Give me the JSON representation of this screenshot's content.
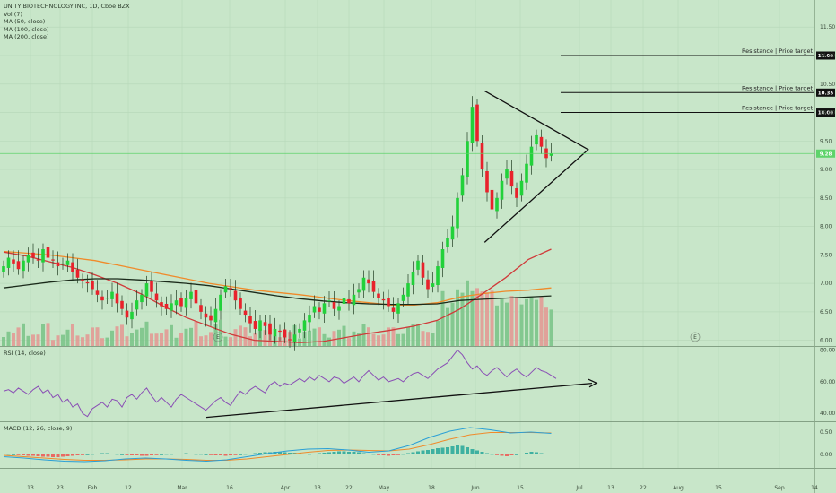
{
  "header": {
    "symbol_title": "UNITY BIOTECHNOLOGY INC, 1D, Cboe BZX",
    "indicators": [
      "Vol (7)",
      "MA (50, close)",
      "MA (100, close)",
      "MA (200, close)"
    ]
  },
  "rsi_panel": {
    "label": "RSI (14, close)"
  },
  "macd_panel": {
    "label": "MACD (12, 26, close, 9)"
  },
  "colors": {
    "background": "#c8e6c9",
    "up": "#22d13a",
    "down": "#e8222b",
    "ma50": "#d03a3a",
    "ma100": "#f08a2a",
    "ma200": "#1a2a1a",
    "rsi": "#8a4fb5",
    "macd": "#2a9fd6",
    "signal": "#f08a2a",
    "current_price_line": "#5ed36b"
  },
  "chart_data": [
    {
      "type": "candlestick",
      "title": "UNITY BIOTECHNOLOGY INC, 1D, Cboe BZX",
      "ylim": [
        5.9,
        11.85
      ],
      "y_ticks": [
        "11.50",
        "11.00",
        "10.50",
        "10.00",
        "9.50",
        "9.00",
        "8.50",
        "8.00",
        "7.50",
        "7.00",
        "6.50",
        "6.00"
      ],
      "x_ticks": [
        "13",
        "23",
        "Feb",
        "12",
        "Mar",
        "16",
        "Apr",
        "13",
        "22",
        "May",
        "18",
        "Jun",
        "15",
        "Jul",
        "13",
        "22",
        "Aug",
        "15",
        "Sep",
        "14"
      ],
      "current_price": "9.28",
      "candles_close": [
        7.3,
        7.45,
        7.35,
        7.25,
        7.4,
        7.5,
        7.45,
        7.4,
        7.6,
        7.45,
        7.4,
        7.3,
        7.35,
        7.4,
        7.2,
        7.1,
        7.05,
        7.0,
        6.9,
        6.8,
        6.7,
        6.75,
        6.85,
        6.65,
        6.55,
        6.4,
        6.5,
        6.7,
        6.8,
        7.0,
        6.85,
        6.7,
        6.6,
        6.55,
        6.65,
        6.7,
        6.6,
        6.75,
        6.85,
        6.65,
        6.5,
        6.4,
        6.35,
        6.55,
        6.8,
        6.95,
        6.9,
        6.7,
        6.55,
        6.45,
        6.3,
        6.2,
        6.35,
        6.25,
        6.1,
        6.2,
        6.15,
        6.05,
        6.0,
        6.1,
        6.2,
        6.35,
        6.45,
        6.6,
        6.5,
        6.65,
        6.7,
        6.55,
        6.6,
        6.75,
        6.65,
        6.8,
        6.9,
        7.1,
        7.0,
        6.85,
        6.75,
        6.7,
        6.6,
        6.5,
        6.65,
        6.8,
        7.0,
        7.2,
        7.4,
        7.1,
        6.9,
        7.0,
        7.3,
        7.6,
        7.8,
        8.0,
        8.5,
        8.9,
        9.5,
        10.1,
        9.5,
        9.0,
        8.6,
        8.3,
        8.5,
        8.8,
        9.0,
        8.7,
        8.5,
        8.8,
        9.1,
        9.4,
        9.6,
        9.4,
        9.2,
        9.28
      ],
      "ma50": [
        7.55,
        7.48,
        7.38,
        7.28,
        7.15,
        7.0,
        6.82,
        6.6,
        6.4,
        6.25,
        6.1,
        6.0,
        5.98,
        5.96,
        5.98,
        6.05,
        6.12,
        6.18,
        6.25,
        6.35,
        6.55,
        6.82,
        7.1,
        7.42,
        7.6
      ],
      "ma100": [
        7.56,
        7.53,
        7.5,
        7.45,
        7.4,
        7.32,
        7.24,
        7.16,
        7.08,
        7.0,
        6.94,
        6.88,
        6.84,
        6.8,
        6.75,
        6.7,
        6.66,
        6.62,
        6.62,
        6.66,
        6.76,
        6.82,
        6.86,
        6.88,
        6.92
      ],
      "ma200": [
        6.92,
        6.97,
        7.02,
        7.06,
        7.08,
        7.08,
        7.06,
        7.03,
        7.0,
        6.96,
        6.9,
        6.84,
        6.78,
        6.73,
        6.69,
        6.66,
        6.64,
        6.63,
        6.63,
        6.64,
        6.7,
        6.72,
        6.74,
        6.76,
        6.78
      ],
      "resistance_levels": [
        {
          "label": "Resistance | Price target",
          "value": "11.00"
        },
        {
          "label": "Resistance | Price target",
          "value": "10.35"
        },
        {
          "label": "Resistance | Price target",
          "value": "10.00"
        }
      ],
      "annotations": [
        "E",
        "E"
      ]
    },
    {
      "type": "line",
      "title": "RSI (14, close)",
      "ylim": [
        35,
        82
      ],
      "y_ticks": [
        "80.00",
        "60.00",
        "40.00"
      ],
      "values": [
        54,
        55,
        53,
        56,
        54,
        52,
        55,
        57,
        53,
        55,
        50,
        52,
        47,
        49,
        44,
        46,
        40,
        38,
        43,
        45,
        47,
        44,
        49,
        48,
        44,
        50,
        52,
        49,
        53,
        56,
        51,
        47,
        50,
        47,
        44,
        49,
        52,
        50,
        48,
        46,
        44,
        42,
        45,
        48,
        50,
        47,
        45,
        50,
        54,
        52,
        55,
        57,
        55,
        53,
        58,
        60,
        57,
        59,
        58,
        60,
        62,
        60,
        63,
        61,
        64,
        62,
        60,
        63,
        62,
        59,
        61,
        63,
        60,
        64,
        67,
        64,
        61,
        63,
        60,
        61,
        62,
        60,
        63,
        65,
        66,
        64,
        62,
        65,
        68,
        70,
        72,
        76,
        80,
        77,
        72,
        68,
        70,
        66,
        64,
        67,
        69,
        66,
        63,
        66,
        68,
        65,
        63,
        66,
        69,
        67,
        66,
        64,
        62
      ]
    },
    {
      "type": "bar",
      "title": "MACD (12, 26, close, 9)",
      "ylim": [
        -0.3,
        0.72
      ],
      "y_ticks": [
        "0.50",
        "0.00"
      ],
      "histogram": [
        0.02,
        0.01,
        0.0,
        -0.01,
        -0.02,
        -0.03,
        -0.03,
        -0.04,
        -0.05,
        -0.05,
        -0.06,
        -0.06,
        -0.05,
        -0.04,
        -0.03,
        -0.02,
        -0.01,
        0.0,
        0.01,
        0.02,
        0.03,
        0.03,
        0.02,
        0.01,
        0.0,
        -0.01,
        -0.02,
        -0.02,
        -0.03,
        -0.03,
        -0.02,
        -0.01,
        0.0,
        0.01,
        0.01,
        0.02,
        0.02,
        0.03,
        0.02,
        0.01,
        0.01,
        0.0,
        -0.01,
        -0.02,
        -0.02,
        -0.03,
        -0.02,
        -0.01,
        0.0,
        0.01,
        0.02,
        0.03,
        0.04,
        0.05,
        0.05,
        0.06,
        0.06,
        0.05,
        0.04,
        0.04,
        0.03,
        0.02,
        0.01,
        0.02,
        0.03,
        0.04,
        0.05,
        0.06,
        0.07,
        0.07,
        0.06,
        0.06,
        0.05,
        0.03,
        0.02,
        0.01,
        -0.01,
        -0.02,
        -0.03,
        -0.02,
        -0.01,
        0.01,
        0.03,
        0.05,
        0.07,
        0.09,
        0.1,
        0.12,
        0.14,
        0.15,
        0.16,
        0.18,
        0.2,
        0.19,
        0.16,
        0.12,
        0.09,
        0.06,
        0.03,
        0.01,
        -0.01,
        -0.03,
        -0.04,
        -0.02,
        0.0,
        0.02,
        0.04,
        0.06,
        0.05,
        0.03,
        0.02
      ],
      "macd_line": [
        -0.05,
        -0.08,
        -0.12,
        -0.15,
        -0.16,
        -0.14,
        -0.1,
        -0.08,
        -0.1,
        -0.13,
        -0.15,
        -0.12,
        -0.05,
        0.02,
        0.08,
        0.12,
        0.13,
        0.1,
        0.05,
        0.08,
        0.2,
        0.38,
        0.52,
        0.6,
        0.55,
        0.48,
        0.5,
        0.47
      ],
      "signal_line": [
        -0.02,
        -0.05,
        -0.08,
        -0.11,
        -0.13,
        -0.13,
        -0.12,
        -0.1,
        -0.1,
        -0.11,
        -0.13,
        -0.13,
        -0.1,
        -0.05,
        0.0,
        0.05,
        0.09,
        0.1,
        0.09,
        0.08,
        0.12,
        0.22,
        0.34,
        0.44,
        0.49,
        0.49,
        0.49,
        0.48
      ]
    }
  ]
}
